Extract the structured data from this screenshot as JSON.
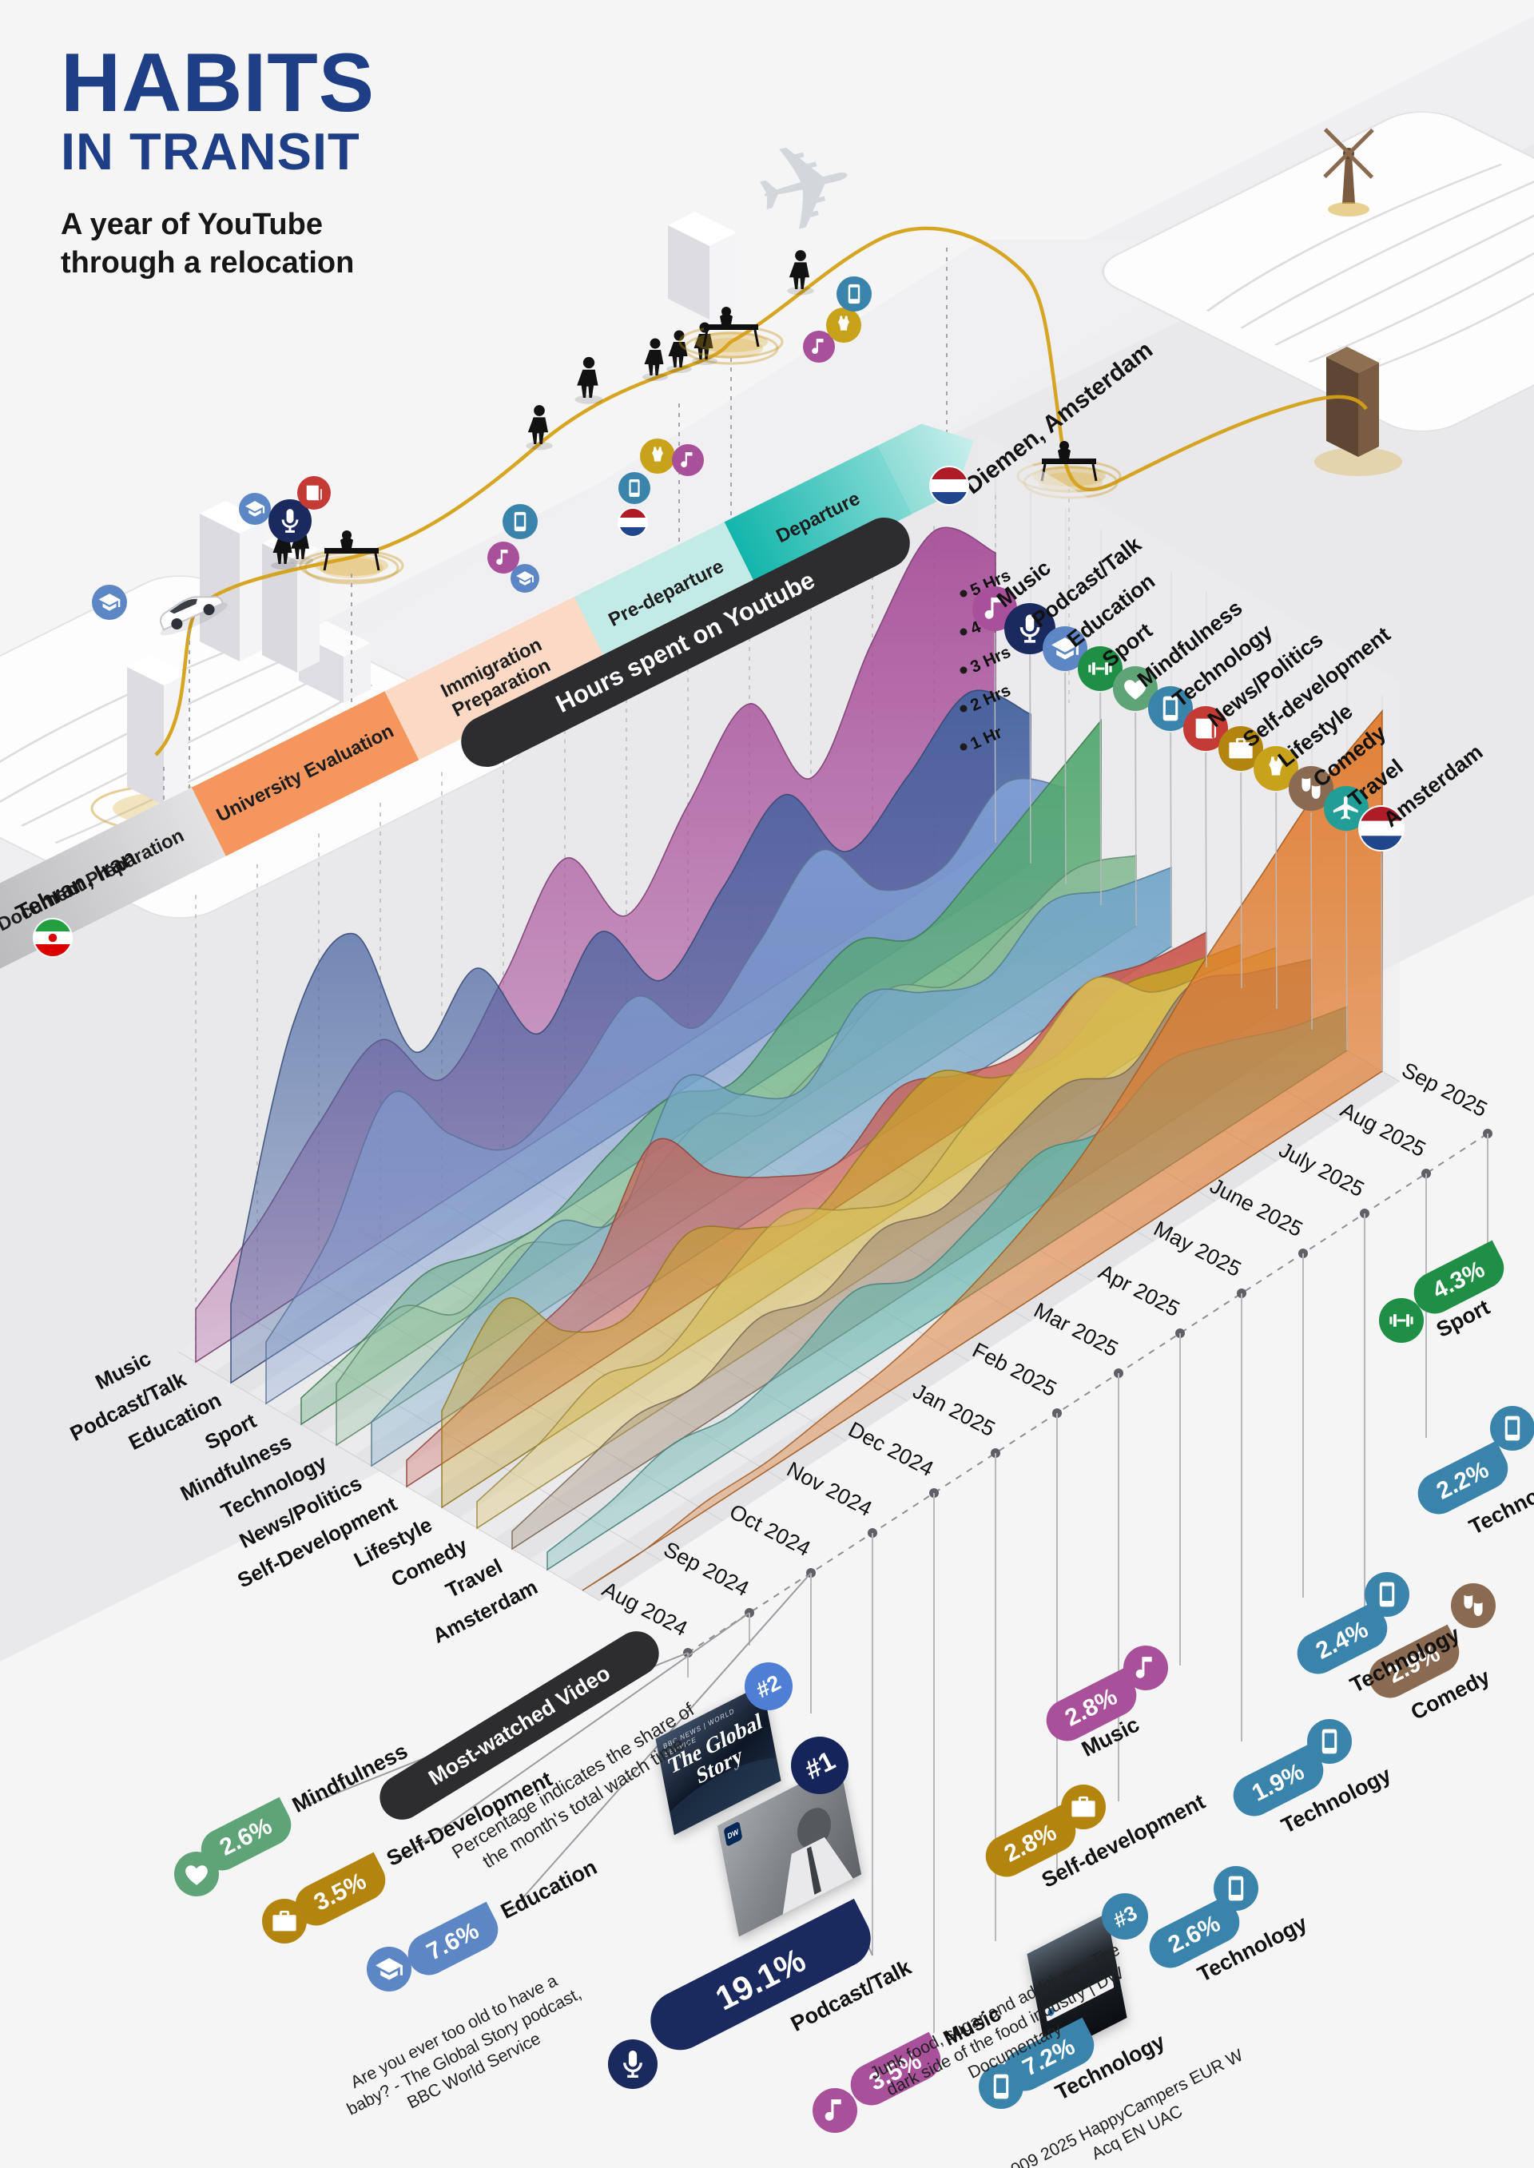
{
  "header": {
    "title_line1": "HABITS",
    "title_line2": "IN TRANSIT",
    "subtitle_line1": "A year of YouTube",
    "subtitle_line2": "through a relocation"
  },
  "locations": {
    "origin": {
      "city": "Tehran, Iran",
      "flag_icon": "iran-flag-icon"
    },
    "destination": {
      "city": "Diemen, Amsterdam",
      "flag_icon": "netherlands-flag-icon"
    }
  },
  "stages": [
    {
      "label": "Document Preparation"
    },
    {
      "label": "University Evaluation"
    },
    {
      "label": "Immigration Preparation"
    },
    {
      "label": "Pre-departure"
    },
    {
      "label": "Departure"
    }
  ],
  "categories": [
    {
      "label": "Music",
      "axis_label": "Music",
      "color": "#a8509a",
      "ridge_color": "#a8509a",
      "icon": "music"
    },
    {
      "label": "Podcast/Talk",
      "axis_label": "Podcast/Talk",
      "color": "#1b2a5e",
      "ridge_color": "#44629f",
      "icon": "podcast"
    },
    {
      "label": "Education",
      "axis_label": "Education",
      "color": "#5d86c5",
      "ridge_color": "#7f9ed2",
      "icon": "education"
    },
    {
      "label": "Sport",
      "axis_label": "Sport",
      "color": "#1f8f45",
      "ridge_color": "#53a86d",
      "icon": "sport"
    },
    {
      "label": "Mindfulness",
      "axis_label": "Mindfulness",
      "color": "#5fa476",
      "ridge_color": "#8abd99",
      "icon": "mindfulness"
    },
    {
      "label": "Technology",
      "axis_label": "Technology",
      "color": "#3a84ab",
      "ridge_color": "#74a6c8",
      "icon": "technology"
    },
    {
      "label": "News/Politics",
      "axis_label": "News/Politics",
      "color": "#c43a35",
      "ridge_color": "#cb5a4f",
      "icon": "news"
    },
    {
      "label": "Self-development",
      "axis_label": "Self-Development",
      "color": "#b3850e",
      "ridge_color": "#c8a22a",
      "icon": "briefcase"
    },
    {
      "label": "Lifestyle",
      "axis_label": "Lifestyle",
      "color": "#c9a21b",
      "ridge_color": "#d8bd55",
      "icon": "lifestyle"
    },
    {
      "label": "Comedy",
      "axis_label": "Comedy",
      "color": "#8a6a50",
      "ridge_color": "#a28d74",
      "icon": "comedy"
    },
    {
      "label": "Travel",
      "axis_label": "Travel",
      "color": "#229e96",
      "ridge_color": "#5fb3aa",
      "icon": "travel"
    },
    {
      "label": "Amsterdam",
      "axis_label": "Amsterdam",
      "color": "#e0782a",
      "ridge_color": "#e07b2d",
      "icon": "flag-nl"
    }
  ],
  "chart_data": {
    "type": "area",
    "variant": "isometric-ridgeline",
    "title": "Hours spent on Youtube",
    "x": [
      "Aug 2024",
      "Sep 2024",
      "Oct 2024",
      "Nov 2024",
      "Dec 2024",
      "Jan 2025",
      "Feb 2025",
      "Mar 2025",
      "Apr 2025",
      "May 2025",
      "June 2025",
      "July 2025",
      "Aug 2025",
      "Sep 2025"
    ],
    "yticks": [
      "1 Hr",
      "2 Hrs",
      "3 Hrs",
      "4 Hrs",
      "5 Hrs"
    ],
    "ylim": [
      0,
      5
    ],
    "grid": true,
    "series": [
      {
        "name": "Music",
        "values": [
          0.6,
          1.1,
          1.8,
          2.3,
          1.4,
          2.1,
          3.0,
          1.9,
          2.7,
          3.4,
          2.1,
          3.2,
          4.0,
          3.3
        ]
      },
      {
        "name": "Podcast/Talk",
        "values": [
          0.9,
          3.6,
          4.2,
          2.4,
          2.9,
          1.7,
          2.4,
          1.4,
          2.0,
          2.6,
          1.5,
          1.9,
          2.4,
          1.7
        ]
      },
      {
        "name": "Education",
        "values": [
          0.7,
          1.4,
          2.6,
          1.7,
          1.1,
          1.4,
          1.9,
          1.1,
          1.6,
          2.2,
          1.3,
          1.1,
          1.6,
          1.1
        ]
      },
      {
        "name": "Sport",
        "values": [
          0.3,
          0.5,
          0.8,
          0.6,
          0.5,
          0.8,
          1.0,
          0.7,
          1.1,
          1.4,
          1.0,
          1.3,
          1.7,
          2.1
        ]
      },
      {
        "name": "Mindfulness",
        "values": [
          0.7,
          1.1,
          0.6,
          0.9,
          0.5,
          0.7,
          1.0,
          0.6,
          0.8,
          1.1,
          0.7,
          0.9,
          1.1,
          0.8
        ]
      },
      {
        "name": "Technology",
        "values": [
          0.5,
          0.8,
          1.1,
          1.4,
          1.0,
          2.1,
          1.5,
          1.1,
          1.7,
          1.3,
          1.0,
          1.4,
          1.1,
          0.9
        ]
      },
      {
        "name": "News/Politics",
        "values": [
          0.3,
          0.5,
          0.8,
          1.1,
          2.1,
          1.3,
          0.8,
          0.5,
          0.9,
          0.6,
          0.4,
          0.7,
          0.5,
          0.4
        ]
      },
      {
        "name": "Self-Development",
        "values": [
          1.1,
          1.9,
          1.1,
          0.8,
          1.3,
          0.9,
          0.6,
          1.0,
          1.3,
          0.8,
          0.6,
          0.9,
          0.7,
          0.5
        ]
      },
      {
        "name": "Lifestyle",
        "values": [
          0.3,
          0.5,
          0.8,
          0.6,
          1.0,
          1.3,
          0.9,
          0.6,
          1.0,
          1.3,
          1.7,
          1.1,
          0.9,
          0.7
        ]
      },
      {
        "name": "Comedy",
        "values": [
          0.2,
          0.4,
          0.6,
          0.5,
          0.8,
          0.6,
          0.9,
          0.7,
          1.0,
          1.2,
          0.9,
          1.4,
          1.1,
          0.8
        ]
      },
      {
        "name": "Travel",
        "values": [
          0.2,
          0.3,
          0.5,
          0.4,
          0.6,
          0.9,
          0.6,
          0.8,
          1.1,
          0.9,
          1.2,
          1.0,
          0.7,
          0.5
        ]
      },
      {
        "name": "Amsterdam",
        "values": [
          0.0,
          0.0,
          0.1,
          0.1,
          0.2,
          0.3,
          0.5,
          0.8,
          1.2,
          1.8,
          2.5,
          3.1,
          3.7,
          4.1
        ]
      }
    ]
  },
  "most_watched": {
    "banner": "Most-watched Video",
    "note": "Percentage indicates the share of the month's total watch time.",
    "items": [
      {
        "month": "Aug 2024",
        "percent": "2.6%",
        "category": "Mindfulness"
      },
      {
        "month": "Sep 2024",
        "percent": "3.5%",
        "category": "Self-Development"
      },
      {
        "month": "Oct 2024",
        "percent": "7.6%",
        "category": "Education",
        "rank": "#2",
        "video": "Are you ever too old to have a baby? - The Global Story podcast, BBC World Service"
      },
      {
        "month": "Nov 2024",
        "percent": "19.1%",
        "category": "Podcast/Talk",
        "rank": "#1",
        "video": "Junk food, sugar and additives - The dark side of the food industry | DW Documentary"
      },
      {
        "month": "Dec 2024",
        "percent": "3.5%",
        "category": "Music"
      },
      {
        "month": "Jan 2025",
        "percent": "7.2%",
        "category": "Technology",
        "rank": "#3",
        "video": "009 2025 HappyCampers EUR W Acq EN UAC"
      },
      {
        "month": "Feb 2025",
        "percent": "2.6%",
        "category": "Technology"
      },
      {
        "month": "Mar 2025",
        "percent": "2.8%",
        "category": "Self-development"
      },
      {
        "month": "Apr 2025",
        "percent": "2.8%",
        "category": "Music"
      },
      {
        "month": "May 2025",
        "percent": "1.9%",
        "category": "Technology"
      },
      {
        "month": "June 2025",
        "percent": "2.4%",
        "category": "Technology"
      },
      {
        "month": "July 2025",
        "percent": "2.9%",
        "category": "Comedy"
      },
      {
        "month": "Aug 2025",
        "percent": "2.2%",
        "category": "Technology"
      },
      {
        "month": "Sep 2025",
        "percent": "4.3%",
        "category": "Sport"
      }
    ]
  },
  "thumbnails": {
    "global_story": {
      "brand": "BBC NEWS | WORLD SERVICE",
      "title": "The Global Story"
    },
    "dw_documentary": {
      "brand": "DW"
    }
  },
  "journey_icons": [
    "education",
    "education",
    "podcast",
    "news",
    "music",
    "technology",
    "education",
    "technology",
    "flag-nl",
    "lifestyle",
    "music",
    "music",
    "lifestyle",
    "technology"
  ]
}
